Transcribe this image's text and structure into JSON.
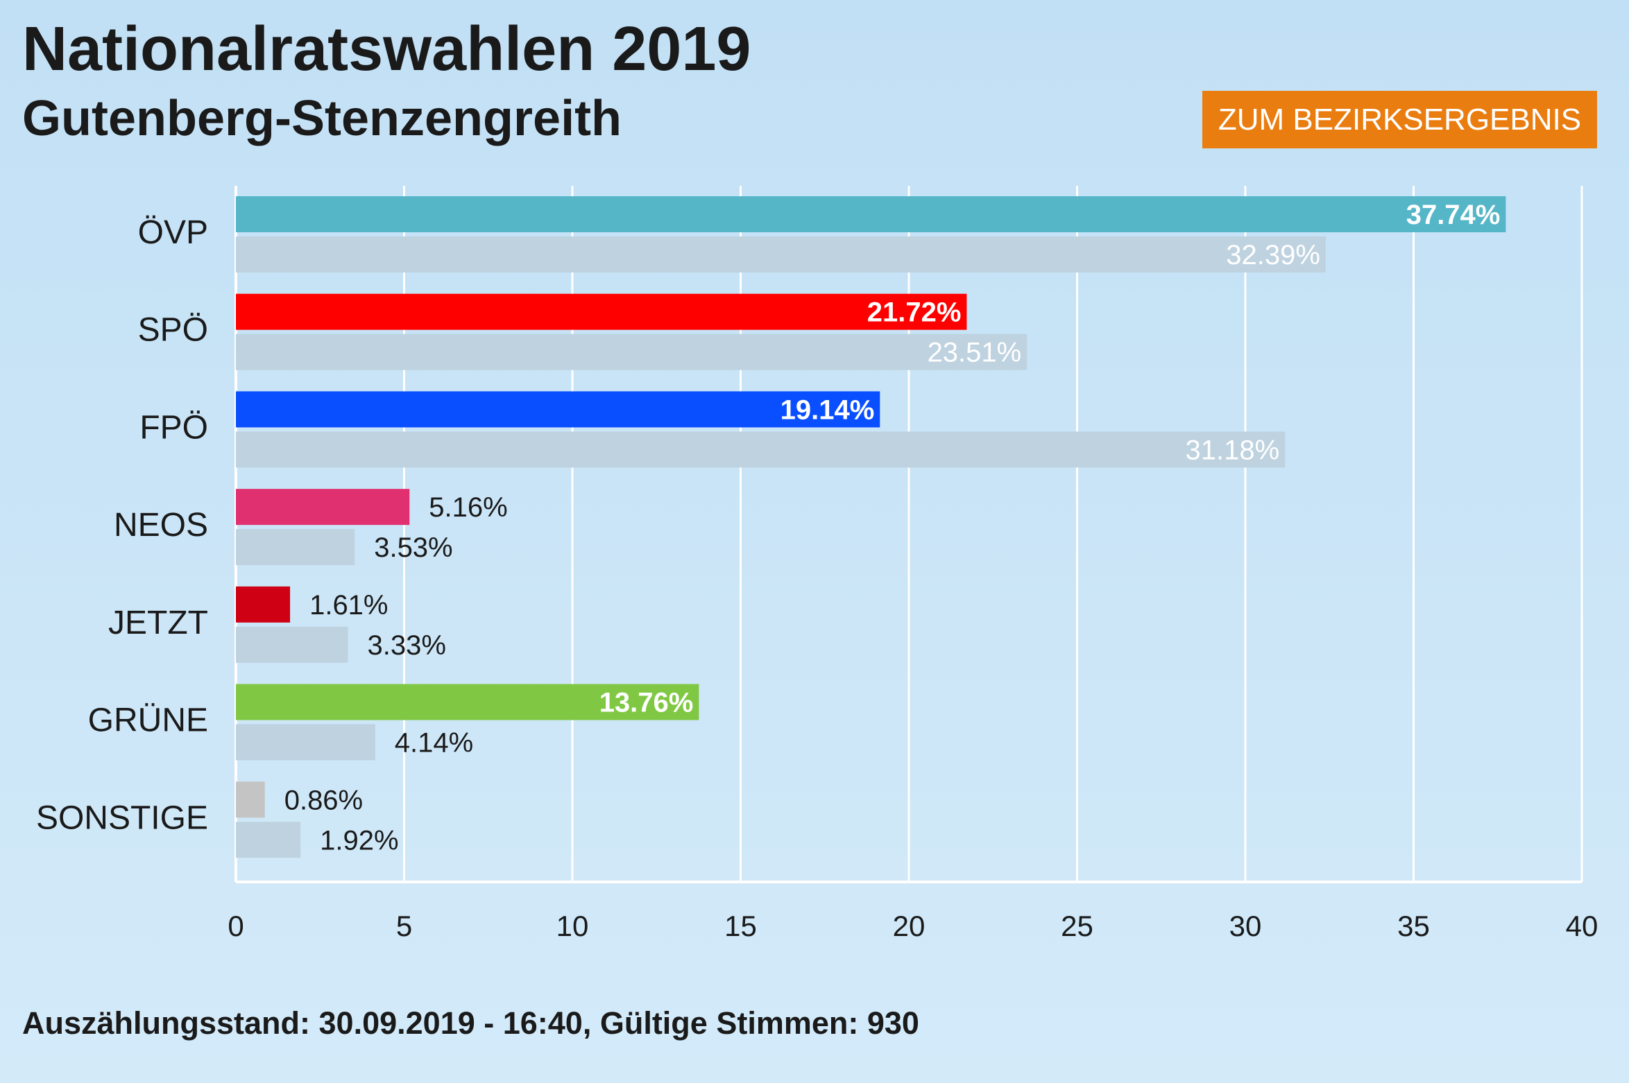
{
  "header": {
    "title": "Nationalratswahlen 2019",
    "subtitle": "Gutenberg-Stenzengreith",
    "button_label": "ZUM BEZIRKSERGEBNIS"
  },
  "footer": {
    "status_text": "Auszählungsstand: 30.09.2019 - 16:40, Gültige Stimmen: 930"
  },
  "colors": {
    "button": "#ea7d10",
    "previous_bar": "#bfd2e0",
    "grid": "#ffffff"
  },
  "chart_data": {
    "type": "bar",
    "orientation": "horizontal",
    "title": "Nationalratswahlen 2019",
    "subtitle": "Gutenberg-Stenzengreith",
    "xlim": [
      0,
      40
    ],
    "x_ticks": [
      0,
      5,
      10,
      15,
      20,
      25,
      30,
      35,
      40
    ],
    "grid": true,
    "categories": [
      "ÖVP",
      "SPÖ",
      "FPÖ",
      "NEOS",
      "JETZT",
      "GRÜNE",
      "SONSTIGE"
    ],
    "series": [
      {
        "values": [
          37.74,
          21.72,
          19.14,
          5.16,
          1.61,
          13.76,
          0.86
        ],
        "labels": [
          "37.74%",
          "21.72%",
          "19.14%",
          "5.16%",
          "1.61%",
          "13.76%",
          "0.86%"
        ],
        "colors": [
          "#55b6c8",
          "#ff0000",
          "#0a4fff",
          "#e0306f",
          "#cf0014",
          "#80c843",
          "#c4c4c4"
        ]
      },
      {
        "values": [
          32.39,
          23.51,
          31.18,
          3.53,
          3.33,
          4.14,
          1.92
        ],
        "labels": [
          "32.39%",
          "23.51%",
          "31.18%",
          "3.53%",
          "3.33%",
          "4.14%",
          "1.92%"
        ],
        "color": "#bfd2e0"
      }
    ]
  }
}
